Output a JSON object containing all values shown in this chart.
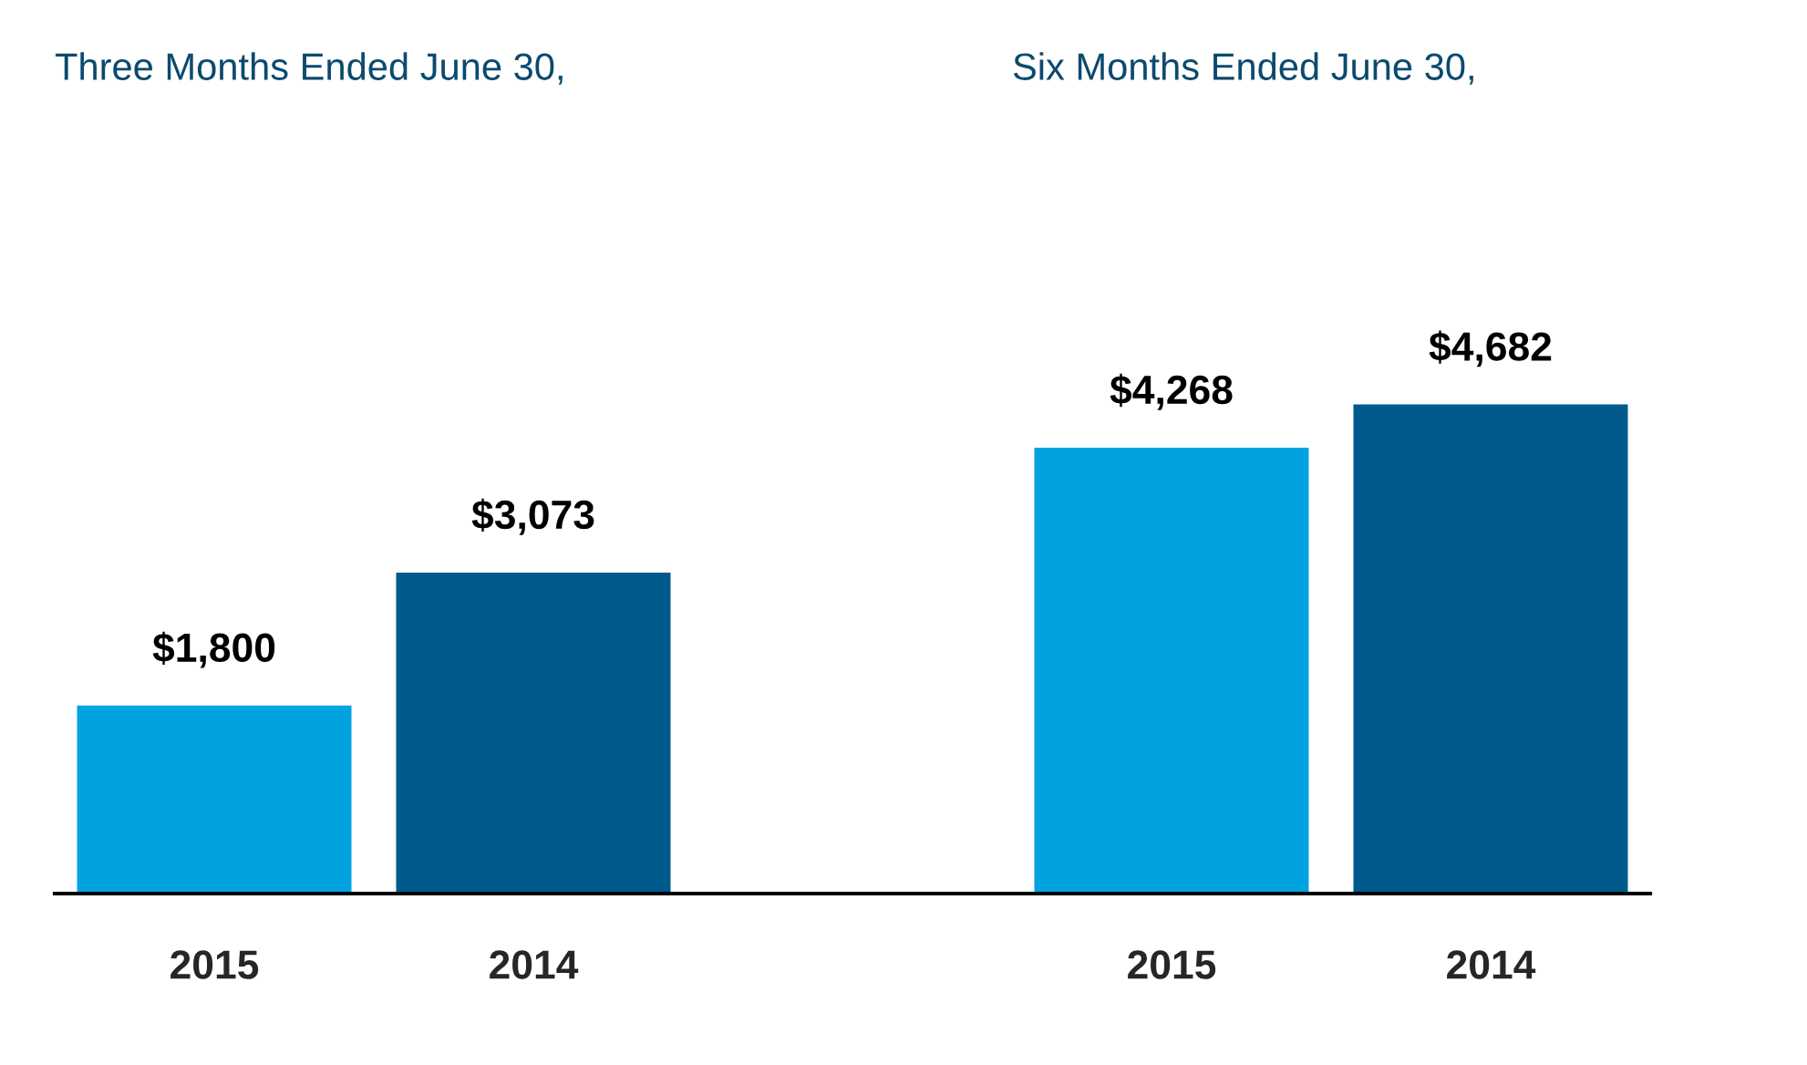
{
  "chart_data": {
    "type": "bar",
    "categories": [
      "2015",
      "2014",
      null,
      "2015",
      "2014"
    ],
    "values": [
      1800,
      3073,
      null,
      4268,
      4682
    ],
    "colors": [
      "#00a3e0",
      "#005a8b",
      null,
      "#00a3e0",
      "#005a8b"
    ],
    "data_labels": true,
    "value_labels": [
      "$1,800",
      "$3,073",
      null,
      "$4,268",
      "$4,682"
    ],
    "annotations": [
      "Three Months Ended June 30,",
      "Six Months Ended June 30,"
    ],
    "grid": false,
    "legend": false
  }
}
